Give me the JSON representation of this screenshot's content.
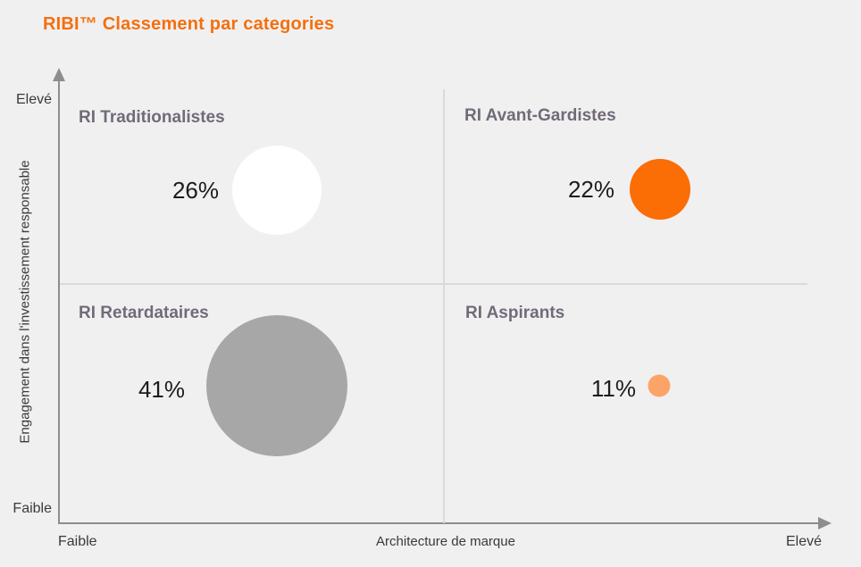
{
  "chart_data": {
    "type": "scatter",
    "subtype": "quadrant-bubble",
    "title": "RIBI™ Classement par categories",
    "title_color": "#F4700E",
    "background_color": "#F1F0F1",
    "axis_color": "#8E8D8E",
    "divider_color": "#DBDADB",
    "quadrant_label_color": "#716B78",
    "xlabel": "Architecture de marque",
    "ylabel": "Engagement dans l'investissement responsable",
    "x_ticks": [
      "Faible",
      "Elevé"
    ],
    "y_ticks": [
      "Faible",
      "Elevé"
    ],
    "grid": "quadrant-cross",
    "legend": "none",
    "points": [
      {
        "label": "RI Traditionalistes",
        "quadrant": "top-left",
        "value": 26,
        "value_label": "26%",
        "color": "#FFFFFF"
      },
      {
        "label": "RI Avant-Gardistes",
        "quadrant": "top-right",
        "value": 22,
        "value_label": "22%",
        "color": "#FB6D05"
      },
      {
        "label": "RI Retardataires",
        "quadrant": "bottom-left",
        "value": 41,
        "value_label": "41%",
        "color": "#A8A7A8"
      },
      {
        "label": "RI Aspirants",
        "quadrant": "bottom-right",
        "value": 11,
        "value_label": "11%",
        "color": "#FCA468"
      }
    ]
  }
}
